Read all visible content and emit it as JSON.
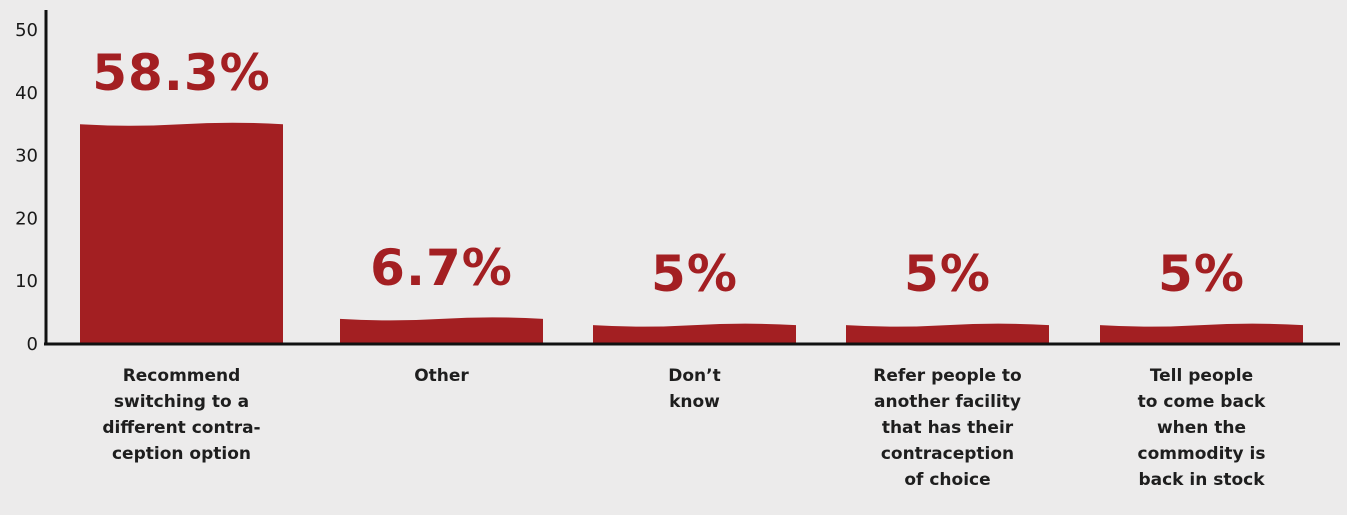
{
  "chart_data": {
    "type": "bar",
    "categories": [
      "Recommend\nswitching to a\ndifferent contra-\nception option",
      "Other",
      "Don’t\nknow",
      "Refer people to\nanother facility\nthat has their\ncontraception\nof choice",
      "Tell people\nto come back\nwhen the\ncommodity is\nback in stock"
    ],
    "values": [
      35,
      4,
      3,
      3,
      3
    ],
    "data_labels": [
      "58.3%",
      "6.7%",
      "5%",
      "5%",
      "5%"
    ],
    "yticks": [
      "0",
      "10",
      "20",
      "30",
      "40",
      "50"
    ],
    "ylim": [
      0,
      50
    ],
    "title": "",
    "xlabel": "",
    "ylabel": "",
    "grid": false,
    "colors": {
      "bar": "#a31f22",
      "axis": "#111111",
      "background": "#ecebeb"
    }
  }
}
